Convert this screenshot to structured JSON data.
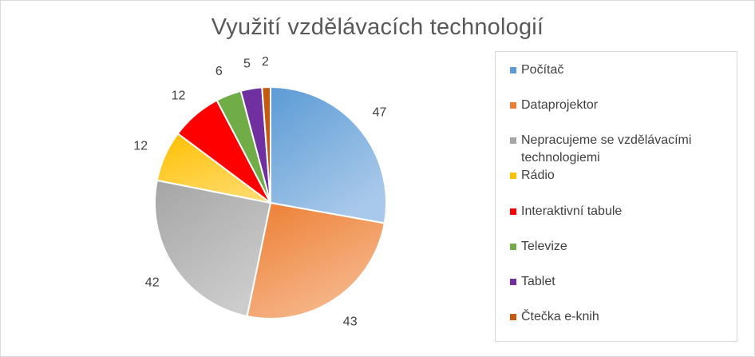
{
  "chart_data": {
    "type": "pie",
    "title": "Využití vzdělávacích technologií",
    "legend_position": "right",
    "categories": [
      "Počítač",
      "Dataprojektor",
      "Nepracujeme se vzdělávacími technologiemi",
      "Rádio",
      "Interaktivní tabule",
      "Televize",
      "Tablet",
      "Čtečka e-knih"
    ],
    "values": [
      47,
      43,
      42,
      12,
      12,
      6,
      5,
      2
    ],
    "colors": [
      "#5b9bd5",
      "#ed7d31",
      "#a5a5a5",
      "#ffc000",
      "#ff0000",
      "#70ad47",
      "#7030a0",
      "#c55a11"
    ],
    "light_colors": [
      "#a9c9ea",
      "#f6b98e",
      "#cccccc",
      "#ffd966",
      "#ff0000",
      "#70ad47",
      "#7030a0",
      "#c55a11"
    ],
    "data_labels": [
      "47",
      "43",
      "42",
      "12",
      "12",
      "6",
      "5",
      "2"
    ]
  }
}
